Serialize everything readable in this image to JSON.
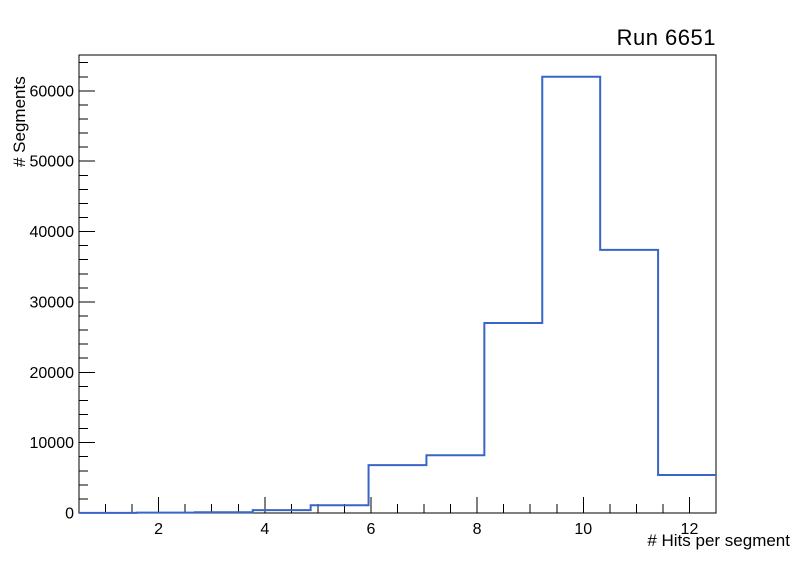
{
  "title": "Run 6651",
  "chart_data": {
    "type": "bar",
    "style": "step-histogram",
    "title": "Run 6651",
    "xlabel": "# Hits per segment",
    "ylabel": "# Segments",
    "xlim": [
      0.5,
      12.5
    ],
    "ylim": [
      0,
      65100
    ],
    "nbins": 11,
    "bin_edges": [
      0.5,
      1.591,
      2.682,
      3.773,
      4.864,
      5.955,
      7.045,
      8.136,
      9.227,
      10.318,
      11.409,
      12.5
    ],
    "values": [
      20,
      50,
      100,
      400,
      1100,
      6800,
      8200,
      27000,
      62000,
      37400,
      5400
    ],
    "x_major_ticks": [
      2,
      4,
      6,
      8,
      10,
      12
    ],
    "x_major_tick_labels": [
      "2",
      "4",
      "6",
      "8",
      "10",
      "12"
    ],
    "x_minor_step": 0.5,
    "y_major_ticks": [
      0,
      10000,
      20000,
      30000,
      40000,
      50000,
      60000
    ],
    "y_major_tick_labels": [
      "0",
      "10000",
      "20000",
      "30000",
      "40000",
      "50000",
      "60000"
    ],
    "y_minor_step": 2000,
    "grid": false,
    "legend": "none",
    "line_color": "#3866c6",
    "axis_color": "#000000",
    "background_color": "#ffffff"
  }
}
